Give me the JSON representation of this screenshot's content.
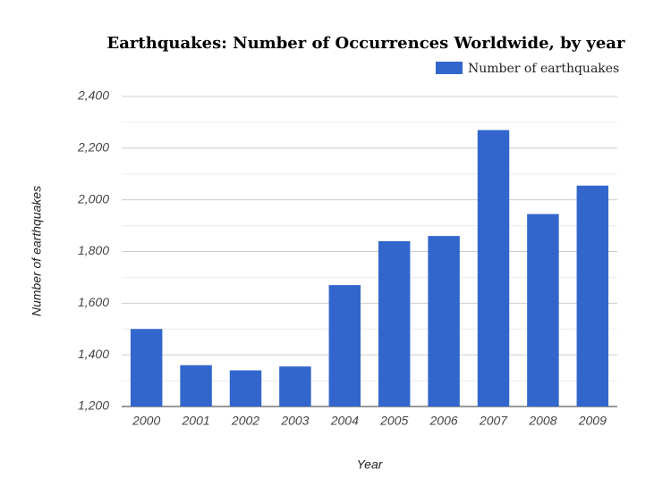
{
  "chart_data": {
    "type": "bar",
    "title": "Earthquakes: Number of Occurrences Worldwide, by year",
    "x_label": "Year",
    "y_label": "Number of earthquakes",
    "categories": [
      "2000",
      "2001",
      "2002",
      "2003",
      "2004",
      "2005",
      "2006",
      "2007",
      "2008",
      "2009"
    ],
    "series": [
      {
        "name": "Number of earthquakes",
        "color": "#3366cc",
        "values": [
          1500,
          1360,
          1340,
          1355,
          1670,
          1840,
          1860,
          2270,
          1945,
          2055
        ]
      }
    ],
    "ylim": [
      1200,
      2400
    ],
    "yticks": [
      {
        "value": 1200,
        "label": "1,200"
      },
      {
        "value": 1400,
        "label": "1,400"
      },
      {
        "value": 1600,
        "label": "1,600"
      },
      {
        "value": 1800,
        "label": "1,800"
      },
      {
        "value": 2000,
        "label": "2,000"
      },
      {
        "value": 2200,
        "label": "2,200"
      },
      {
        "value": 2400,
        "label": "2,400"
      }
    ],
    "minor_yticks": [
      1300,
      1500,
      1700,
      1900,
      2100,
      2300
    ],
    "grid": true,
    "legend": "top-right"
  }
}
